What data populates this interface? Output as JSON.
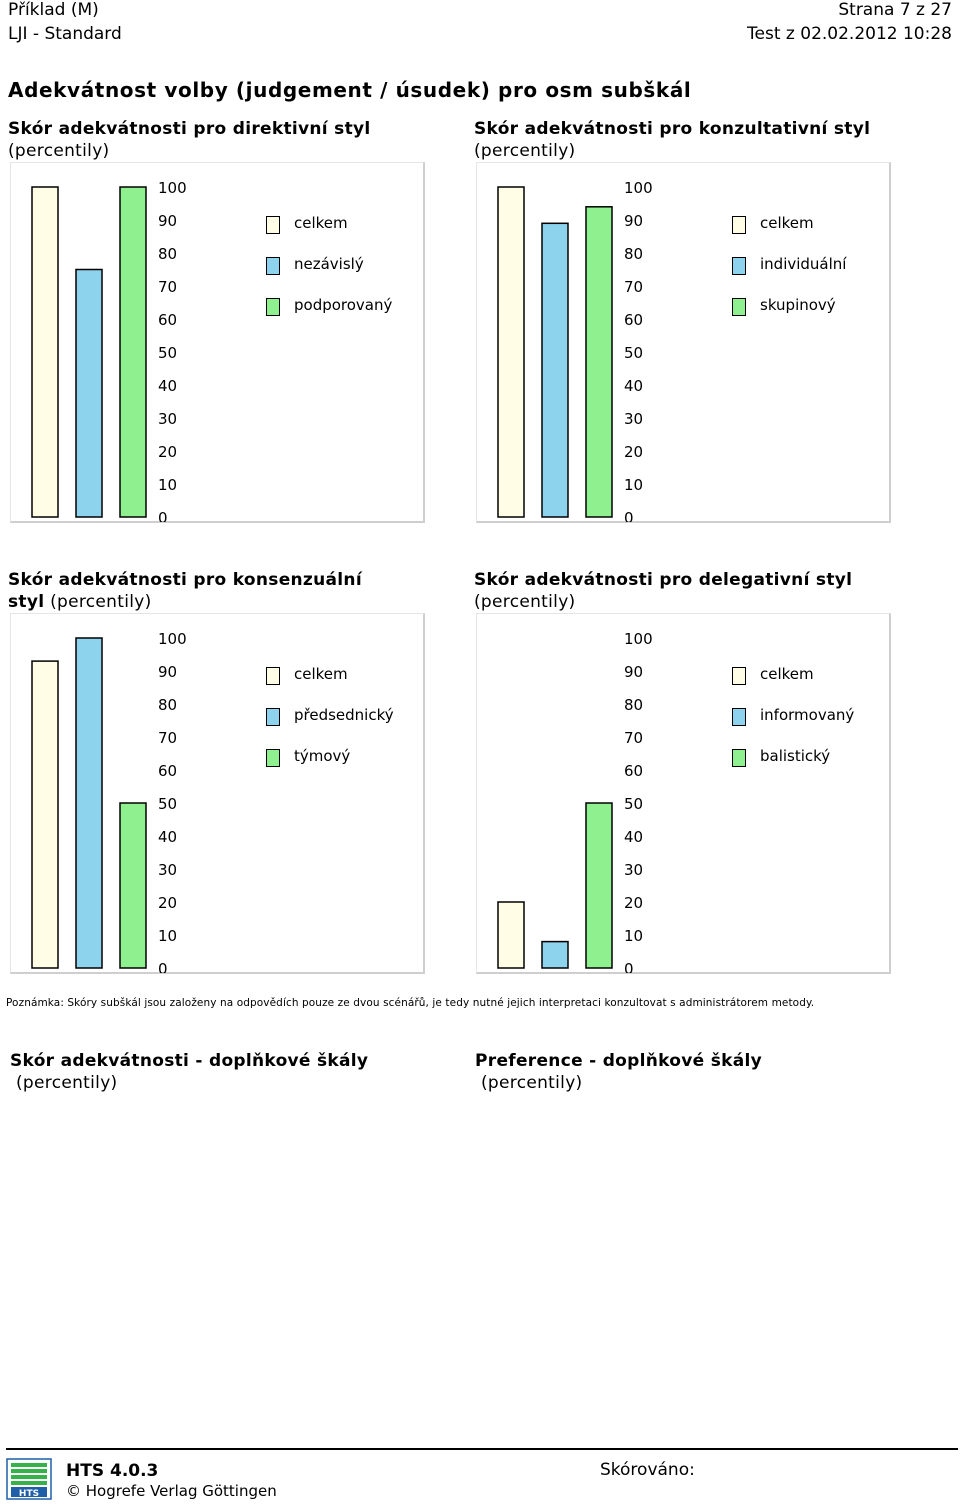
{
  "header": {
    "left_line1": "Příklad (M)",
    "left_line2": "LJI - Standard",
    "right_line1": "Strana 7 z 27",
    "right_line2": "Test z 02.02.2012 10:28"
  },
  "main_title": "Adekvátnost volby (judgement / úsudek) pro osm subškál",
  "colors": {
    "celkem": "#fffde6",
    "second": "#8dd3ee",
    "third": "#8ff08f"
  },
  "sections": [
    {
      "title_bold": "Skór adekvátnosti pro direktivní styl",
      "title_rest": "(percentily)"
    },
    {
      "title_bold": "Skór adekvátnosti pro konzultativní styl",
      "title_rest": "(percentily)"
    },
    {
      "title_bold_line1": "Skór adekvátnosti pro konsenzuální",
      "title_bold_line2": "styl",
      "title_rest": "(percentily)"
    },
    {
      "title_bold": "Skór adekvátnosti pro delegativní styl",
      "title_rest": "(percentily)"
    }
  ],
  "chart_data": [
    {
      "type": "bar",
      "title": "Skór adekvátnosti pro direktivní styl (percentily)",
      "ylim": [
        0,
        100
      ],
      "yticks": [
        "0",
        "10",
        "20",
        "30",
        "40",
        "50",
        "60",
        "70",
        "80",
        "90",
        "100"
      ],
      "series": [
        {
          "name": "celkem",
          "values": [
            100
          ]
        },
        {
          "name": "nezávislý",
          "values": [
            75
          ]
        },
        {
          "name": "podporovaný",
          "values": [
            100
          ]
        }
      ]
    },
    {
      "type": "bar",
      "title": "Skór adekvátnosti pro konzultativní styl (percentily)",
      "ylim": [
        0,
        100
      ],
      "yticks": [
        "0",
        "10",
        "20",
        "30",
        "40",
        "50",
        "60",
        "70",
        "80",
        "90",
        "100"
      ],
      "series": [
        {
          "name": "celkem",
          "values": [
            100
          ]
        },
        {
          "name": "individuální",
          "values": [
            89
          ]
        },
        {
          "name": "skupinový",
          "values": [
            94
          ]
        }
      ]
    },
    {
      "type": "bar",
      "title": "Skór adekvátnosti pro konsenzuální styl (percentily)",
      "ylim": [
        0,
        100
      ],
      "yticks": [
        "0",
        "10",
        "20",
        "30",
        "40",
        "50",
        "60",
        "70",
        "80",
        "90",
        "100"
      ],
      "series": [
        {
          "name": "celkem",
          "values": [
            93
          ]
        },
        {
          "name": "předsednický",
          "values": [
            100
          ]
        },
        {
          "name": "týmový",
          "values": [
            50
          ]
        }
      ]
    },
    {
      "type": "bar",
      "title": "Skór adekvátnosti pro delegativní styl (percentily)",
      "ylim": [
        0,
        100
      ],
      "yticks": [
        "0",
        "10",
        "20",
        "30",
        "40",
        "50",
        "60",
        "70",
        "80",
        "90",
        "100"
      ],
      "series": [
        {
          "name": "celkem",
          "values": [
            20
          ]
        },
        {
          "name": "informovaný",
          "values": [
            8
          ]
        },
        {
          "name": "balistický",
          "values": [
            50
          ]
        }
      ]
    }
  ],
  "legends": [
    [
      "celkem",
      "nezávislý",
      "podporovaný"
    ],
    [
      "celkem",
      "individuální",
      "skupinový"
    ],
    [
      "celkem",
      "předsednický",
      "týmový"
    ],
    [
      "celkem",
      "informovaný",
      "balistický"
    ]
  ],
  "note": "Poznámka: Skóry subškál jsou založeny na odpovědích pouze ze dvou scénářů, je tedy nutné jejich interpretaci konzultovat s administrátorem metody.",
  "supplementary": {
    "left_title": "Skór adekvátnosti - doplňkové škály",
    "left_sub": "(percentily)",
    "right_title": "Preference - doplňkové škály",
    "right_sub": "(percentily)"
  },
  "footer": {
    "version": "HTS 4.0.3",
    "copyright": "© Hogrefe Verlag Göttingen",
    "scored_label": "Skórováno:",
    "logo_text": "HTS"
  }
}
